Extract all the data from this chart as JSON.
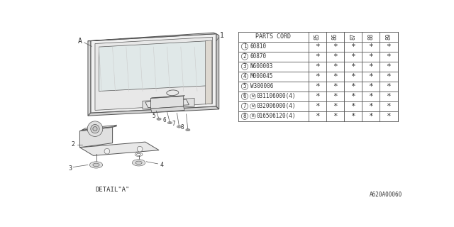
{
  "bg_color": "#ffffff",
  "title_code": "A620A00060",
  "table": {
    "col_headers": [
      "PARTS CORD",
      "85",
      "86",
      "87",
      "88",
      "89"
    ],
    "rows": [
      {
        "num": "1",
        "code": "60810",
        "prefix": ""
      },
      {
        "num": "2",
        "code": "60870",
        "prefix": ""
      },
      {
        "num": "3",
        "code": "N600003",
        "prefix": ""
      },
      {
        "num": "4",
        "code": "M000045",
        "prefix": ""
      },
      {
        "num": "5",
        "code": "W300006",
        "prefix": ""
      },
      {
        "num": "6",
        "code": "031106000(4)",
        "prefix": "W"
      },
      {
        "num": "7",
        "code": "032006000(4)",
        "prefix": "W"
      },
      {
        "num": "8",
        "code": "016506120(4)",
        "prefix": "B"
      }
    ]
  },
  "detail_label": "DETAIL\"A\""
}
